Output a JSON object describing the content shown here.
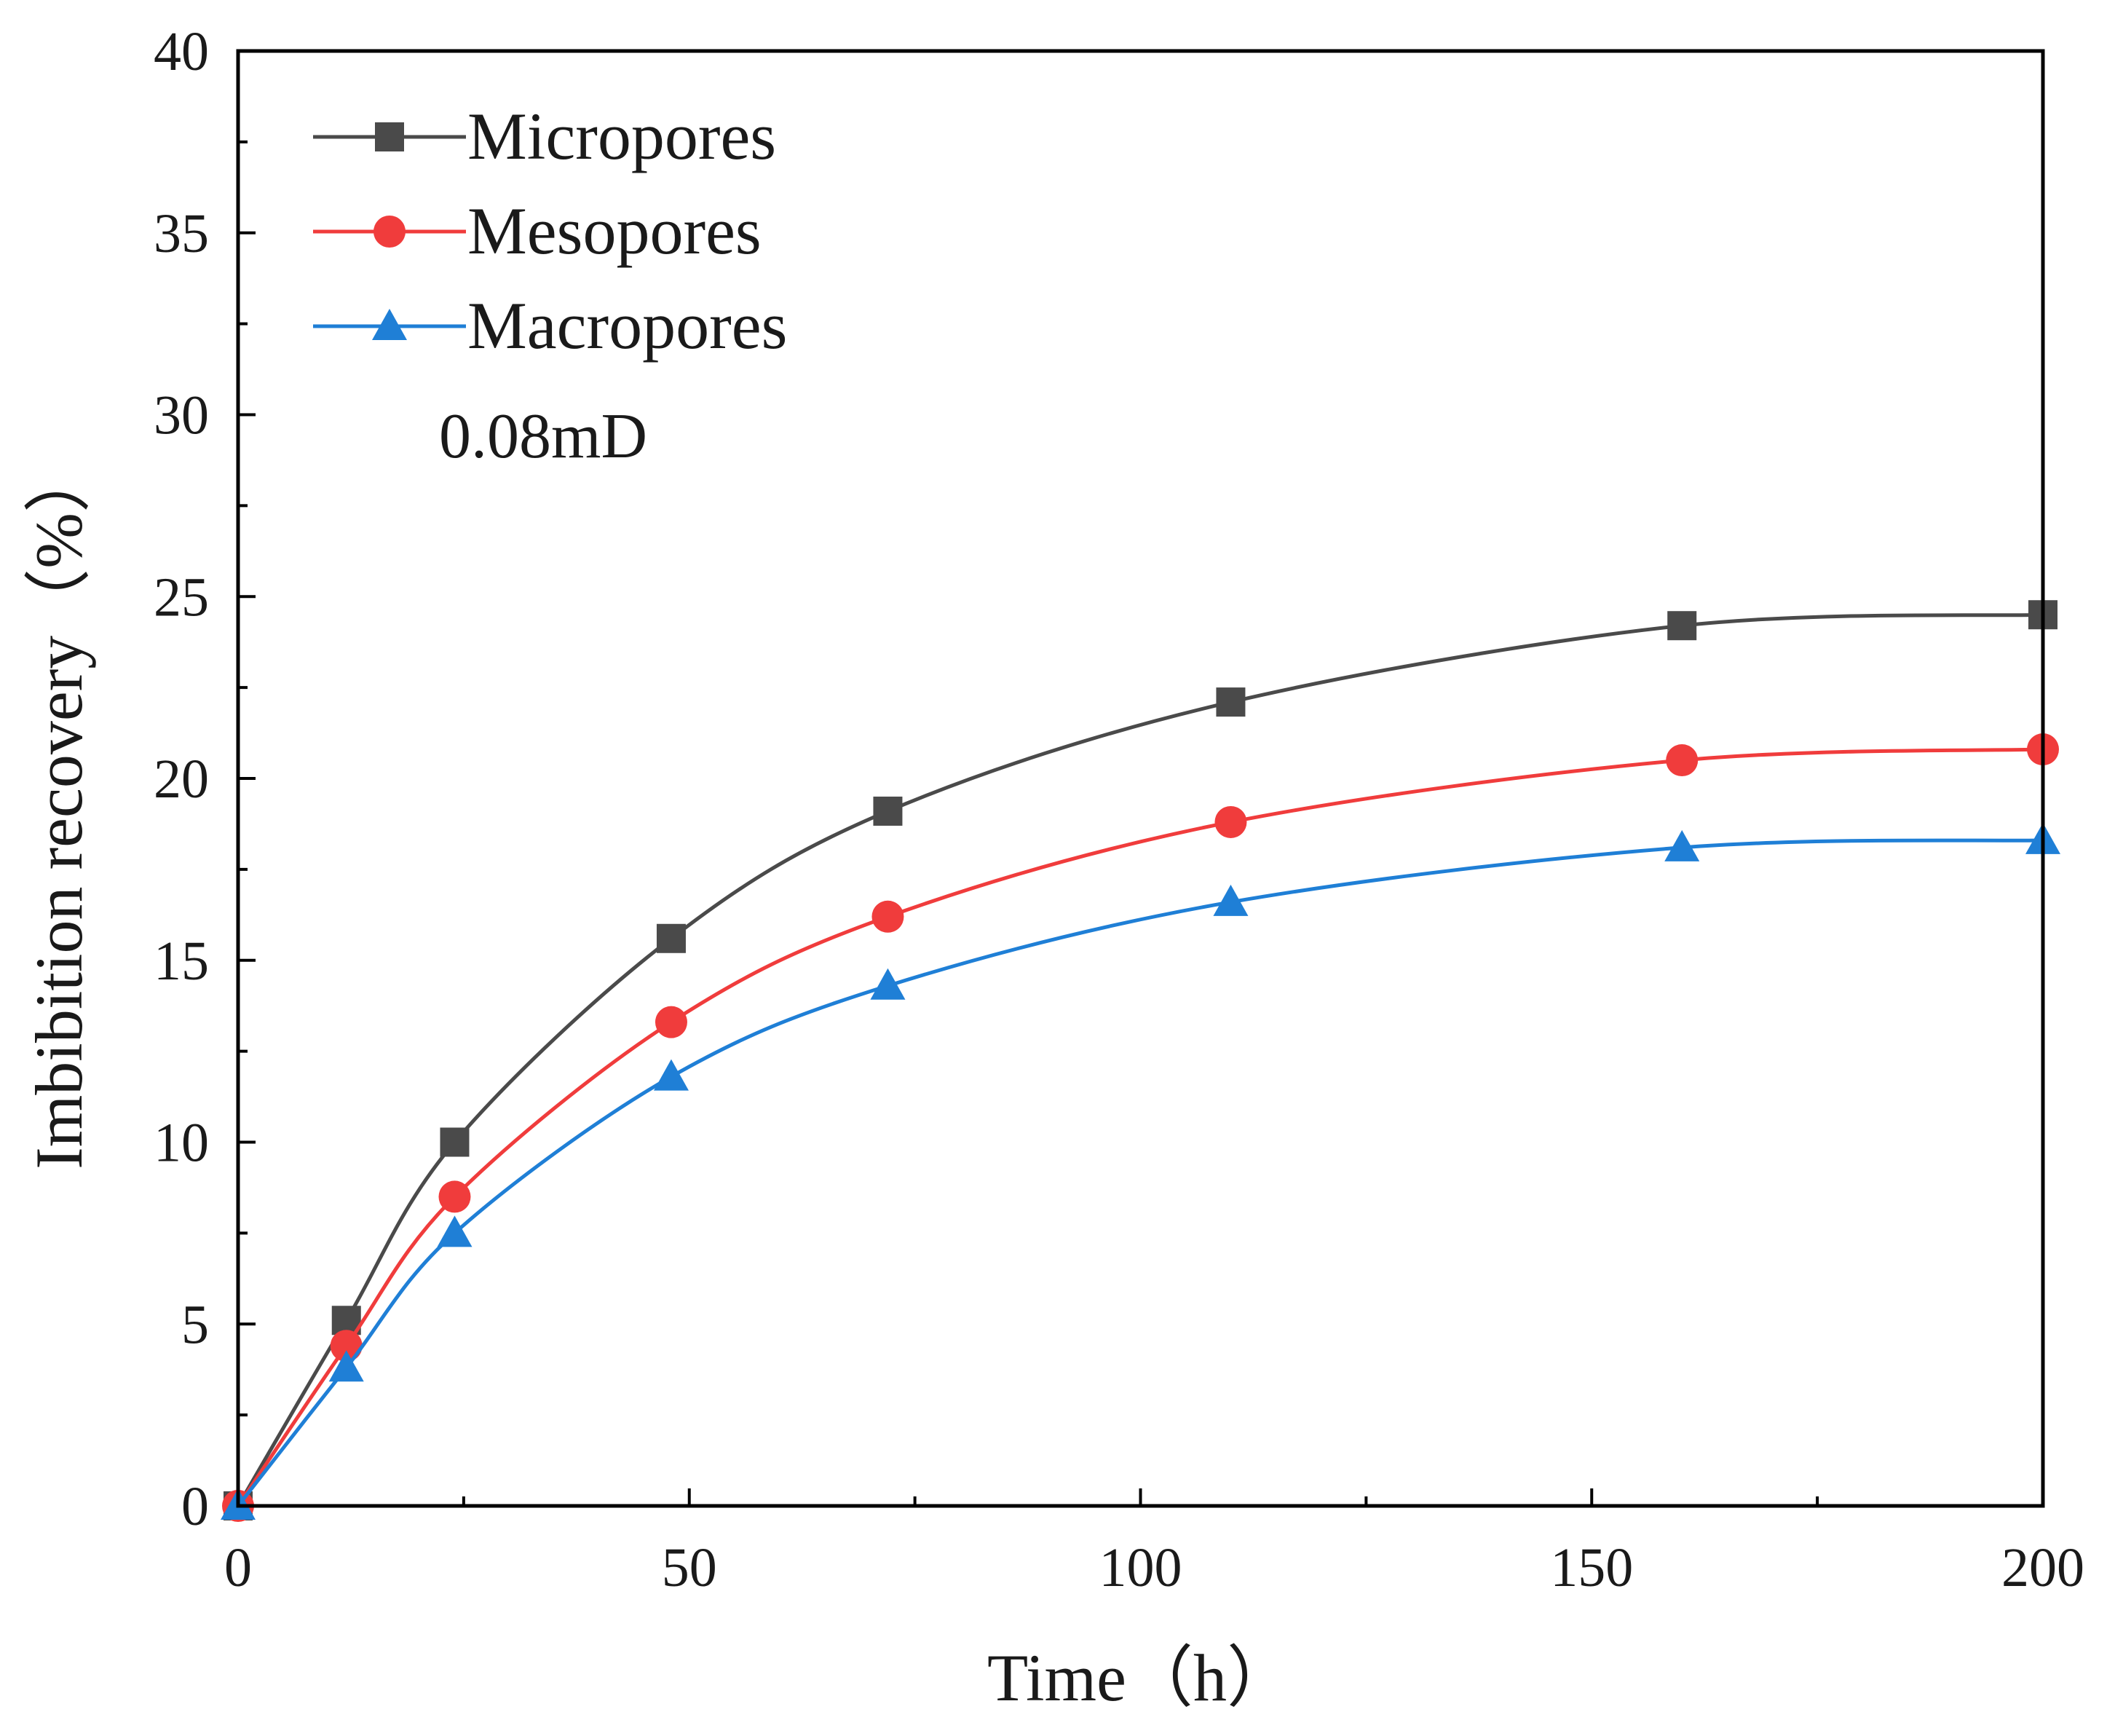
{
  "chart_data": {
    "type": "line",
    "title": "",
    "xlabel": "Time（h）",
    "ylabel": "Imbibition recovery（%）",
    "xlim": [
      0,
      200
    ],
    "ylim": [
      0,
      40
    ],
    "xticks": [
      0,
      50,
      100,
      150,
      200
    ],
    "yticks": [
      0,
      5,
      10,
      15,
      20,
      25,
      30,
      35,
      40
    ],
    "x": [
      0,
      12,
      24,
      48,
      72,
      110,
      160,
      200
    ],
    "series": [
      {
        "name": "Micropores",
        "color": "#4a4a4a",
        "marker": "square",
        "values": [
          0,
          5.1,
          10.0,
          15.6,
          19.1,
          22.1,
          24.2,
          24.5
        ]
      },
      {
        "name": "Mesopores",
        "color": "#f03c3c",
        "marker": "circle",
        "values": [
          0,
          4.4,
          8.5,
          13.3,
          16.2,
          18.8,
          20.5,
          20.8
        ]
      },
      {
        "name": "Macropores",
        "color": "#1f7fd6",
        "marker": "triangle",
        "values": [
          0,
          3.8,
          7.5,
          11.8,
          14.3,
          16.6,
          18.1,
          18.3
        ]
      }
    ],
    "annotation": "0.08mD",
    "legend_position": "top-left",
    "grid": false
  }
}
